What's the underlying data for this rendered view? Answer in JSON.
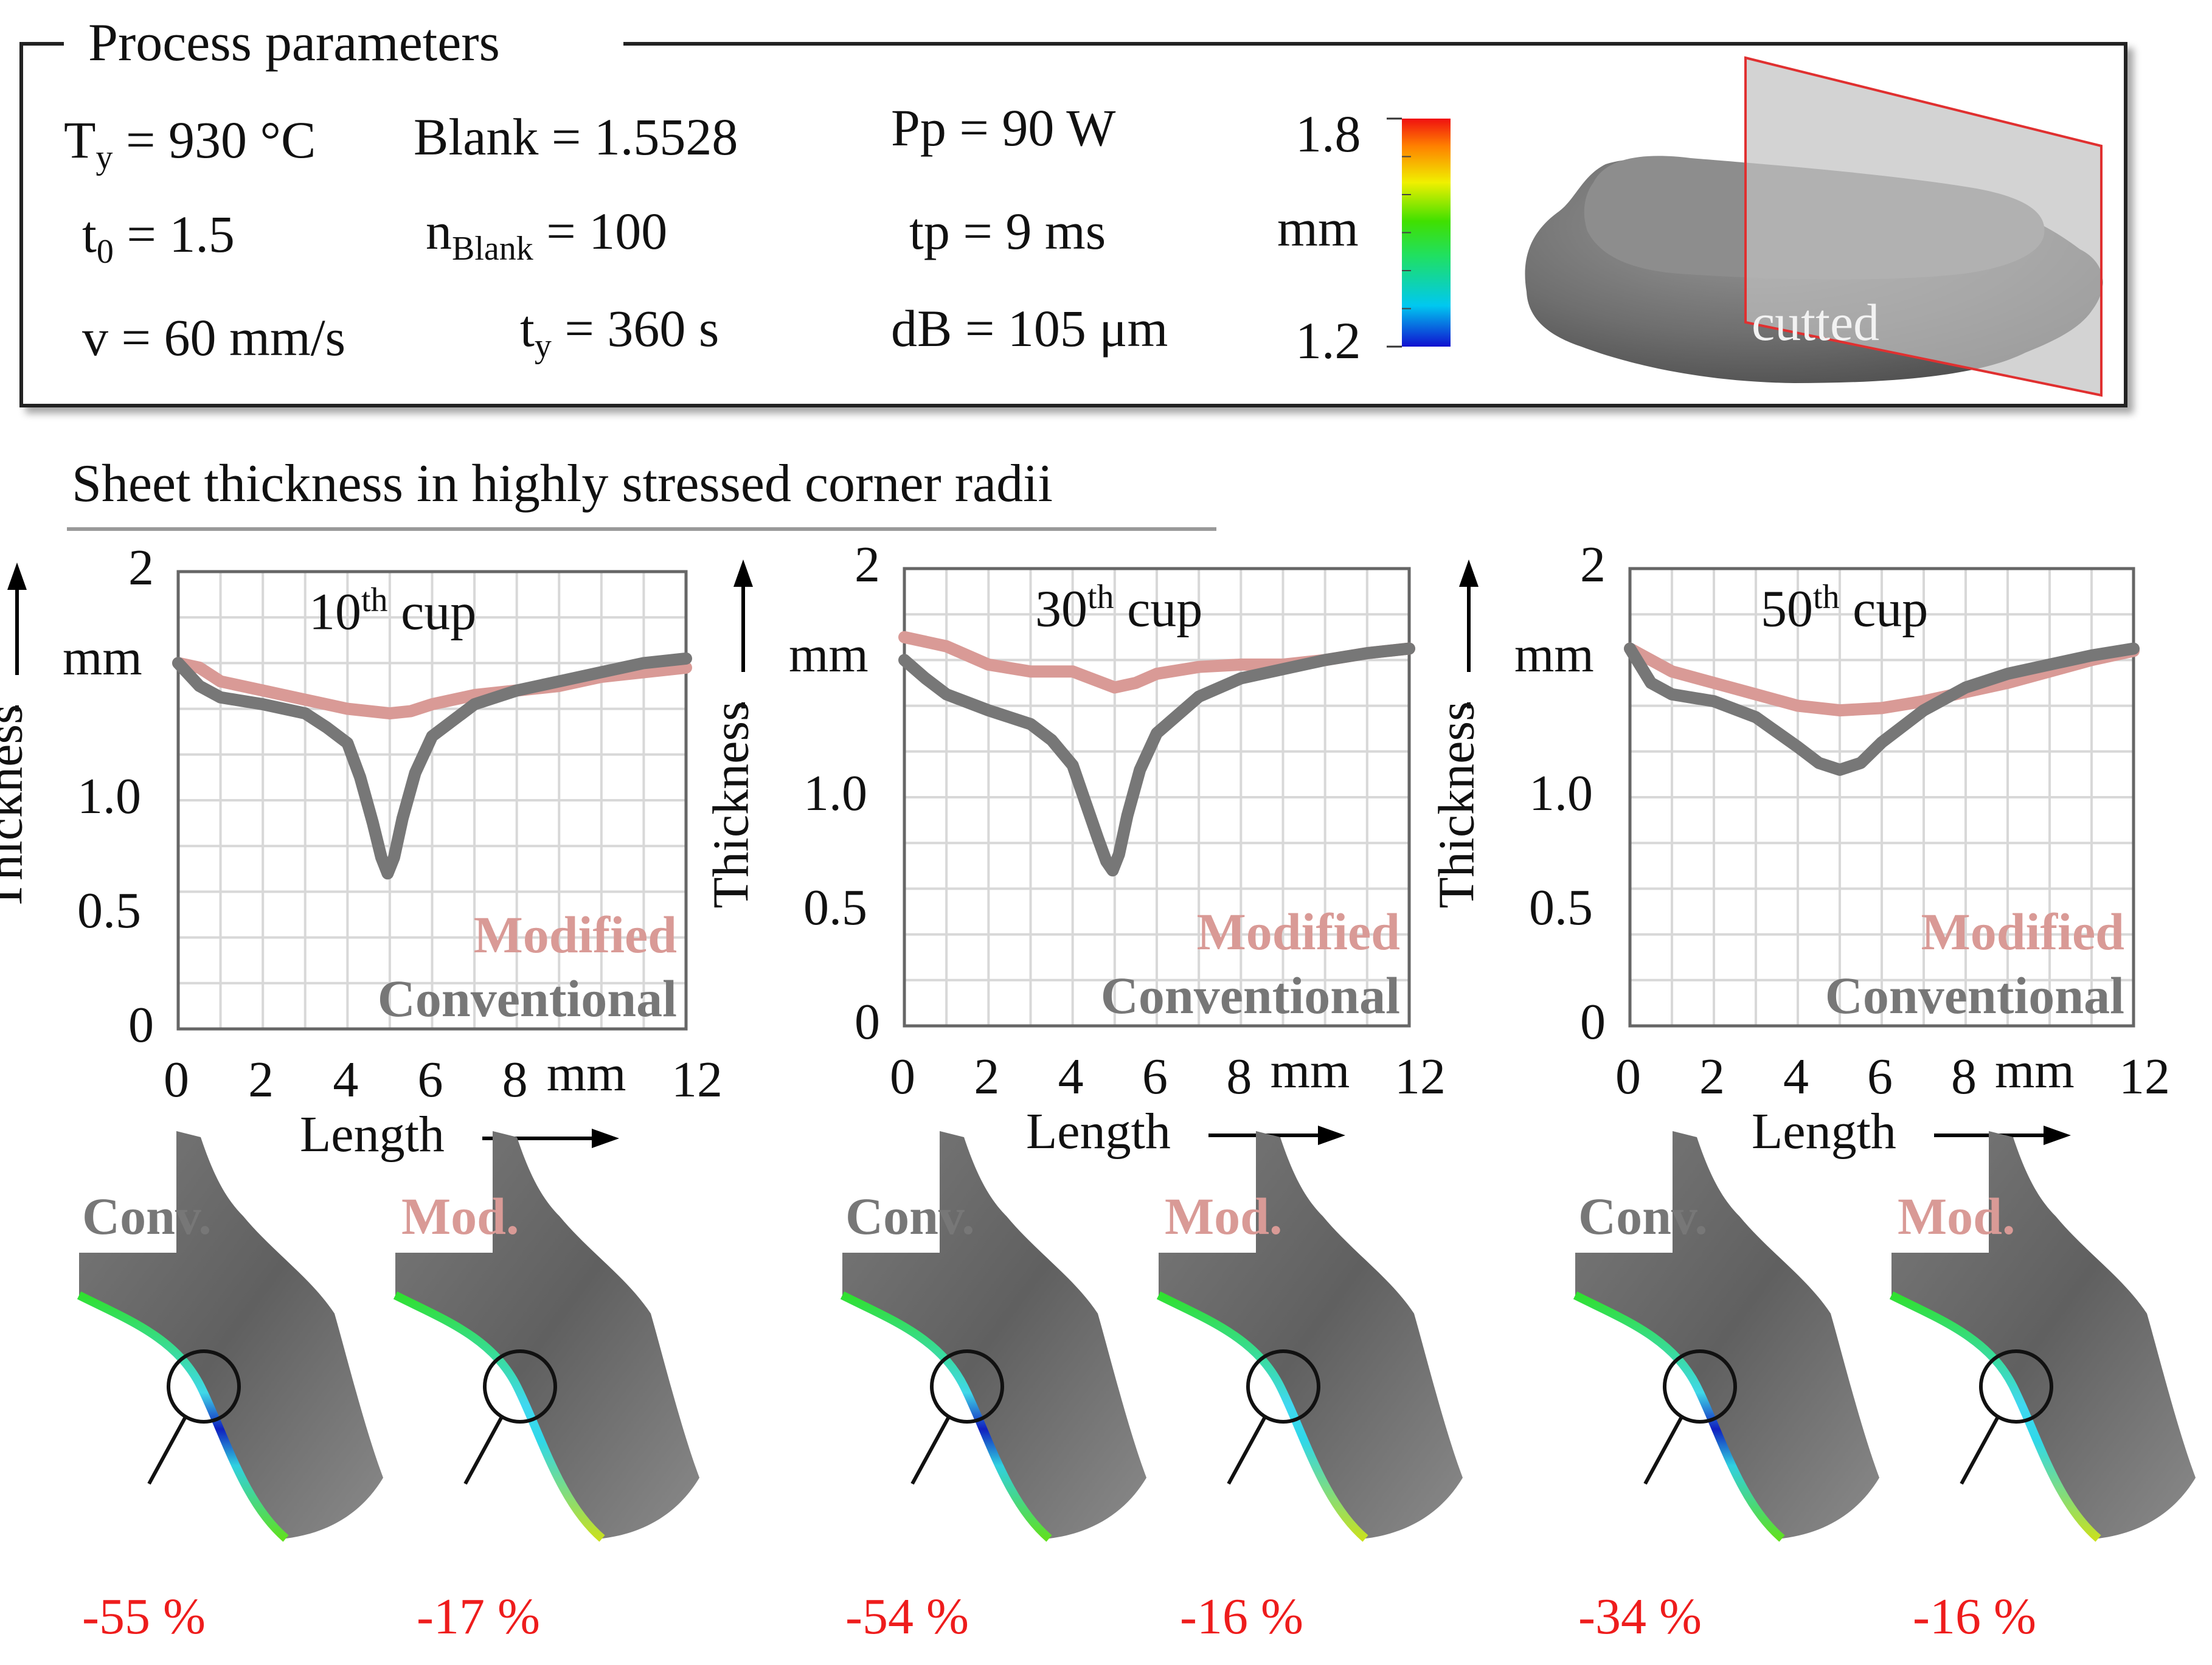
{
  "params_box": {
    "title": "Process parameters",
    "row1": [
      {
        "pre": "T",
        "sub": "y",
        "post": " = 930 °C"
      },
      {
        "pre": "Blank = 1.5528",
        "sub": "",
        "post": ""
      },
      {
        "pre": "Pp = 90 W",
        "sub": "",
        "post": ""
      }
    ],
    "row2": [
      {
        "pre": "t",
        "sub": "0",
        "post": " = 1.5"
      },
      {
        "pre": "n",
        "sub": "Blank",
        "post": " = 100"
      },
      {
        "pre": "tp = 9 ms",
        "sub": "",
        "post": ""
      }
    ],
    "row3": [
      {
        "pre": "v = 60 mm/s",
        "sub": "",
        "post": ""
      },
      {
        "pre": "t",
        "sub": "y",
        "post": " = 360 s"
      },
      {
        "pre": "dB = 105 μm",
        "sub": "",
        "post": ""
      }
    ],
    "scale_max": "1.8",
    "scale_unit": "mm",
    "scale_min": "1.2",
    "cut_label": "cutted"
  },
  "section_title": "Sheet thickness in highly stressed corner radii",
  "colors": {
    "modified": "#d99a96",
    "conventional": "#777777",
    "percent": "#ee1c1c"
  },
  "chart_data": [
    {
      "type": "line",
      "title": "10th cup",
      "title_main": "10",
      "title_sup": "th",
      "title_rest": " cup",
      "xlabel": "Length",
      "ylabel": "Thickness",
      "xunit": "mm",
      "yunit": "mm",
      "xlim": [
        0,
        12
      ],
      "ylim": [
        0,
        2
      ],
      "xticks": [
        "0",
        "2",
        "4",
        "6",
        "8",
        "12"
      ],
      "yticks": [
        "0",
        "0.5",
        "1.0",
        "2"
      ],
      "legend": [
        "Modified",
        "Conventional"
      ],
      "series": [
        {
          "name": "Modified",
          "x": [
            0,
            0.5,
            1,
            2,
            3,
            4,
            5,
            5.5,
            6,
            7,
            8,
            9,
            10,
            11,
            12
          ],
          "y": [
            1.6,
            1.58,
            1.52,
            1.48,
            1.44,
            1.4,
            1.38,
            1.39,
            1.42,
            1.46,
            1.48,
            1.5,
            1.54,
            1.56,
            1.58
          ]
        },
        {
          "name": "Conventional",
          "x": [
            0,
            0.5,
            1,
            2,
            3,
            3.5,
            4,
            4.3,
            4.6,
            4.8,
            4.95,
            5.1,
            5.3,
            5.6,
            6,
            7,
            8,
            9,
            10,
            11,
            12
          ],
          "y": [
            1.6,
            1.5,
            1.45,
            1.42,
            1.38,
            1.32,
            1.25,
            1.1,
            0.9,
            0.75,
            0.68,
            0.75,
            0.92,
            1.12,
            1.28,
            1.42,
            1.48,
            1.52,
            1.56,
            1.6,
            1.62
          ]
        }
      ]
    },
    {
      "type": "line",
      "title": "30th cup",
      "title_main": "30",
      "title_sup": "th",
      "title_rest": " cup",
      "xlabel": "Length",
      "ylabel": "Thickness",
      "xunit": "mm",
      "yunit": "mm",
      "xlim": [
        0,
        12
      ],
      "ylim": [
        0,
        2
      ],
      "xticks": [
        "0",
        "2",
        "4",
        "6",
        "8",
        "12"
      ],
      "yticks": [
        "0",
        "0.5",
        "1.0",
        "2"
      ],
      "legend": [
        "Modified",
        "Conventional"
      ],
      "series": [
        {
          "name": "Modified",
          "x": [
            0,
            1,
            2,
            3,
            4,
            5,
            5.5,
            6,
            7,
            8,
            9,
            10,
            11,
            12
          ],
          "y": [
            1.7,
            1.66,
            1.58,
            1.55,
            1.55,
            1.48,
            1.5,
            1.54,
            1.57,
            1.58,
            1.58,
            1.6,
            1.63,
            1.65
          ]
        },
        {
          "name": "Conventional",
          "x": [
            0,
            0.5,
            1,
            2,
            3,
            3.5,
            4,
            4.3,
            4.6,
            4.8,
            4.95,
            5.1,
            5.3,
            5.6,
            6,
            7,
            8,
            9,
            10,
            11,
            12
          ],
          "y": [
            1.6,
            1.52,
            1.45,
            1.38,
            1.32,
            1.25,
            1.14,
            0.98,
            0.82,
            0.72,
            0.68,
            0.75,
            0.92,
            1.12,
            1.28,
            1.44,
            1.52,
            1.56,
            1.6,
            1.63,
            1.65
          ]
        }
      ]
    },
    {
      "type": "line",
      "title": "50th cup",
      "title_main": "50",
      "title_sup": "th",
      "title_rest": " cup",
      "xlabel": "Length",
      "ylabel": "Thickness",
      "xunit": "mm",
      "yunit": "mm",
      "xlim": [
        0,
        12
      ],
      "ylim": [
        0,
        2
      ],
      "xticks": [
        "0",
        "2",
        "4",
        "6",
        "8",
        "12"
      ],
      "yticks": [
        "0",
        "0.5",
        "1.0",
        "2"
      ],
      "legend": [
        "Modified",
        "Conventional"
      ],
      "series": [
        {
          "name": "Modified",
          "x": [
            0,
            0.5,
            1,
            2,
            3,
            4,
            5,
            6,
            7,
            8,
            9,
            10,
            11,
            12
          ],
          "y": [
            1.65,
            1.6,
            1.55,
            1.5,
            1.45,
            1.4,
            1.38,
            1.39,
            1.42,
            1.46,
            1.5,
            1.55,
            1.6,
            1.64
          ]
        },
        {
          "name": "Conventional",
          "x": [
            0,
            0.5,
            1,
            2,
            3,
            4,
            4.5,
            5,
            5.5,
            6,
            7,
            8,
            9,
            10,
            11,
            12
          ],
          "y": [
            1.65,
            1.5,
            1.45,
            1.42,
            1.35,
            1.22,
            1.15,
            1.12,
            1.15,
            1.24,
            1.38,
            1.48,
            1.54,
            1.58,
            1.62,
            1.65
          ]
        }
      ]
    }
  ],
  "bottom_sims": [
    {
      "conv_label": "Conv.",
      "mod_label": "Mod.",
      "conv_pct": "-55 %",
      "mod_pct": "-17 %"
    },
    {
      "conv_label": "Conv.",
      "mod_label": "Mod.",
      "conv_pct": "-54 %",
      "mod_pct": "-16 %"
    },
    {
      "conv_label": "Conv.",
      "mod_label": "Mod.",
      "conv_pct": "-34 %",
      "mod_pct": "-16 %"
    }
  ]
}
